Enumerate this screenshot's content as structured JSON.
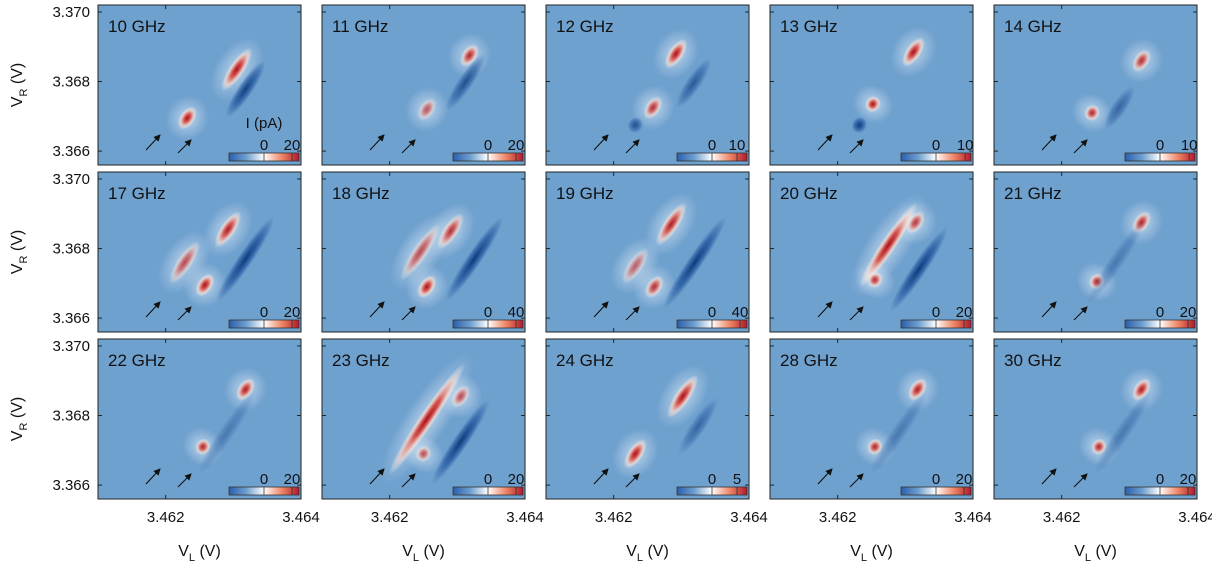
{
  "chart_data": {
    "type": "heatmap",
    "layout": "3 rows x 5 columns of current maps",
    "x_axis": {
      "label_main": "V",
      "label_sub": "L",
      "label_unit": " (V)",
      "range": [
        3.461,
        3.464
      ],
      "ticks": [
        3.462,
        3.464
      ],
      "tick_labels": [
        "3.462",
        "3.464"
      ]
    },
    "y_axis": {
      "label_main": "V",
      "label_sub": "R",
      "label_unit": " (V)",
      "range": [
        3.3656,
        3.3702
      ],
      "ticks": [
        3.366,
        3.368,
        3.37
      ],
      "tick_labels": [
        "3.366",
        "3.368",
        "3.370"
      ]
    },
    "colorbar_label": "I (pA)",
    "colormap": [
      "#2b5fa8",
      "#6f9fd0",
      "#ffffff",
      "#ef8866",
      "#b2182b"
    ],
    "background_color": "#6fa1cf",
    "panels": [
      {
        "label": "10 GHz",
        "cbar_ticks": [
          "0",
          "20"
        ],
        "cbar_max": 25,
        "cbar_label_shown": true,
        "features": [
          {
            "x": 3.46232,
            "y": 3.36695,
            "amp": 1.0,
            "len": 0.0003
          },
          {
            "x": 3.46305,
            "y": 3.36835,
            "amp": 1.0,
            "len": 0.0006
          },
          {
            "x": 3.46318,
            "y": 3.36778,
            "amp": -0.85,
            "len": 0.0008
          }
        ]
      },
      {
        "label": "11 GHz",
        "cbar_ticks": [
          "0",
          "20"
        ],
        "cbar_max": 25,
        "cbar_label_shown": false,
        "features": [
          {
            "x": 3.46255,
            "y": 3.3672,
            "amp": 0.55,
            "len": 0.0003
          },
          {
            "x": 3.46318,
            "y": 3.36875,
            "amp": 0.8,
            "len": 0.0003
          },
          {
            "x": 3.46312,
            "y": 3.36798,
            "amp": -0.7,
            "len": 0.0008
          }
        ]
      },
      {
        "label": "12 GHz",
        "cbar_ticks": [
          "0",
          "10"
        ],
        "cbar_max": 14,
        "cbar_label_shown": false,
        "features": [
          {
            "x": 3.46258,
            "y": 3.36725,
            "amp": 0.75,
            "len": 0.0003
          },
          {
            "x": 3.46292,
            "y": 3.3688,
            "amp": 0.9,
            "len": 0.0004
          },
          {
            "x": 3.46232,
            "y": 3.36675,
            "amp": -0.7,
            "len": 0.0002
          },
          {
            "x": 3.46318,
            "y": 3.36795,
            "amp": -0.6,
            "len": 0.0007
          }
        ]
      },
      {
        "label": "13 GHz",
        "cbar_ticks": [
          "0",
          "10"
        ],
        "cbar_max": 12,
        "cbar_label_shown": false,
        "features": [
          {
            "x": 3.46252,
            "y": 3.36735,
            "amp": 1.0,
            "len": 0.0002
          },
          {
            "x": 3.46312,
            "y": 3.36885,
            "amp": 1.0,
            "len": 0.0004
          },
          {
            "x": 3.46232,
            "y": 3.36675,
            "amp": -0.9,
            "len": 0.0002
          }
        ]
      },
      {
        "label": "14 GHz",
        "cbar_ticks": [
          "0",
          "10"
        ],
        "cbar_max": 12,
        "cbar_label_shown": false,
        "features": [
          {
            "x": 3.46245,
            "y": 3.3671,
            "amp": 0.8,
            "len": 0.0002
          },
          {
            "x": 3.46318,
            "y": 3.3686,
            "amp": 0.75,
            "len": 0.0003
          },
          {
            "x": 3.46285,
            "y": 3.36725,
            "amp": -0.5,
            "len": 0.0006
          }
        ]
      },
      {
        "label": "17 GHz",
        "cbar_ticks": [
          "0",
          "20"
        ],
        "cbar_max": 25,
        "cbar_label_shown": false,
        "features": [
          {
            "x": 3.46258,
            "y": 3.36695,
            "amp": 1.0,
            "len": 0.0003
          },
          {
            "x": 3.46292,
            "y": 3.36855,
            "amp": 0.85,
            "len": 0.0005
          },
          {
            "x": 3.46228,
            "y": 3.3676,
            "amp": 0.6,
            "len": 0.0006
          },
          {
            "x": 3.46318,
            "y": 3.3677,
            "amp": -0.9,
            "len": 0.0012
          }
        ]
      },
      {
        "label": "18 GHz",
        "cbar_ticks": [
          "0",
          "40"
        ],
        "cbar_max": 50,
        "cbar_label_shown": false,
        "features": [
          {
            "x": 3.46255,
            "y": 3.3669,
            "amp": 0.9,
            "len": 0.0003
          },
          {
            "x": 3.4629,
            "y": 3.3685,
            "amp": 0.75,
            "len": 0.0005
          },
          {
            "x": 3.46245,
            "y": 3.3679,
            "amp": 0.6,
            "len": 0.0008
          },
          {
            "x": 3.46325,
            "y": 3.3677,
            "amp": -0.9,
            "len": 0.0012
          }
        ]
      },
      {
        "label": "19 GHz",
        "cbar_ticks": [
          "0",
          "40"
        ],
        "cbar_max": 50,
        "cbar_label_shown": false,
        "features": [
          {
            "x": 3.4626,
            "y": 3.3669,
            "amp": 0.75,
            "len": 0.0003
          },
          {
            "x": 3.46285,
            "y": 3.3687,
            "amp": 0.85,
            "len": 0.0006
          },
          {
            "x": 3.46232,
            "y": 3.3675,
            "amp": 0.5,
            "len": 0.0005
          },
          {
            "x": 3.4632,
            "y": 3.3676,
            "amp": -0.9,
            "len": 0.0013
          }
        ]
      },
      {
        "label": "20 GHz",
        "cbar_ticks": [
          "0",
          "20"
        ],
        "cbar_max": 25,
        "cbar_label_shown": false,
        "features": [
          {
            "x": 3.46275,
            "y": 3.3681,
            "amp": 1.0,
            "len": 0.0012
          },
          {
            "x": 3.46255,
            "y": 3.3671,
            "amp": 0.75,
            "len": 0.0002
          },
          {
            "x": 3.46315,
            "y": 3.36875,
            "amp": 0.7,
            "len": 0.0003
          },
          {
            "x": 3.4632,
            "y": 3.3674,
            "amp": -1.0,
            "len": 0.0012
          }
        ]
      },
      {
        "label": "21 GHz",
        "cbar_ticks": [
          "0",
          "20"
        ],
        "cbar_max": 25,
        "cbar_label_shown": false,
        "features": [
          {
            "x": 3.46252,
            "y": 3.36705,
            "amp": 0.8,
            "len": 0.0002
          },
          {
            "x": 3.46318,
            "y": 3.36875,
            "amp": 0.8,
            "len": 0.0003
          },
          {
            "x": 3.4628,
            "y": 3.3676,
            "amp": -0.3,
            "len": 0.0012
          }
        ]
      },
      {
        "label": "22 GHz",
        "cbar_ticks": [
          "0",
          "20"
        ],
        "cbar_max": 25,
        "cbar_label_shown": false,
        "features": [
          {
            "x": 3.46255,
            "y": 3.3671,
            "amp": 0.8,
            "len": 0.0002
          },
          {
            "x": 3.46318,
            "y": 3.36875,
            "amp": 0.85,
            "len": 0.0003
          },
          {
            "x": 3.4629,
            "y": 3.3675,
            "amp": -0.3,
            "len": 0.0012
          }
        ]
      },
      {
        "label": "23 GHz",
        "cbar_ticks": [
          "0",
          "20"
        ],
        "cbar_max": 25,
        "cbar_label_shown": false,
        "features": [
          {
            "x": 3.46255,
            "y": 3.3679,
            "amp": 1.0,
            "len": 0.0016
          },
          {
            "x": 3.4625,
            "y": 3.3669,
            "amp": 0.6,
            "len": 0.0002
          },
          {
            "x": 3.46305,
            "y": 3.36855,
            "amp": 0.6,
            "len": 0.0003
          },
          {
            "x": 3.46305,
            "y": 3.36725,
            "amp": -1.0,
            "len": 0.0012
          }
        ]
      },
      {
        "label": "24 GHz",
        "cbar_ticks": [
          "0",
          "5"
        ],
        "cbar_max": 7,
        "cbar_label_shown": false,
        "features": [
          {
            "x": 3.46232,
            "y": 3.3669,
            "amp": 1.0,
            "len": 0.0004
          },
          {
            "x": 3.46302,
            "y": 3.36855,
            "amp": 1.0,
            "len": 0.0006
          },
          {
            "x": 3.46325,
            "y": 3.3677,
            "amp": -0.5,
            "len": 0.0008
          }
        ]
      },
      {
        "label": "28 GHz",
        "cbar_ticks": [
          "0",
          "20"
        ],
        "cbar_max": 25,
        "cbar_label_shown": false,
        "features": [
          {
            "x": 3.46255,
            "y": 3.3671,
            "amp": 0.8,
            "len": 0.0002
          },
          {
            "x": 3.46318,
            "y": 3.36875,
            "amp": 0.85,
            "len": 0.0003
          },
          {
            "x": 3.4629,
            "y": 3.3675,
            "amp": -0.3,
            "len": 0.0012
          }
        ]
      },
      {
        "label": "30 GHz",
        "cbar_ticks": [
          "0",
          "20"
        ],
        "cbar_max": 25,
        "cbar_label_shown": false,
        "features": [
          {
            "x": 3.46255,
            "y": 3.3671,
            "amp": 0.8,
            "len": 0.0002
          },
          {
            "x": 3.46318,
            "y": 3.36875,
            "amp": 0.85,
            "len": 0.0003
          },
          {
            "x": 3.4629,
            "y": 3.3675,
            "amp": -0.3,
            "len": 0.0012
          }
        ]
      }
    ]
  }
}
